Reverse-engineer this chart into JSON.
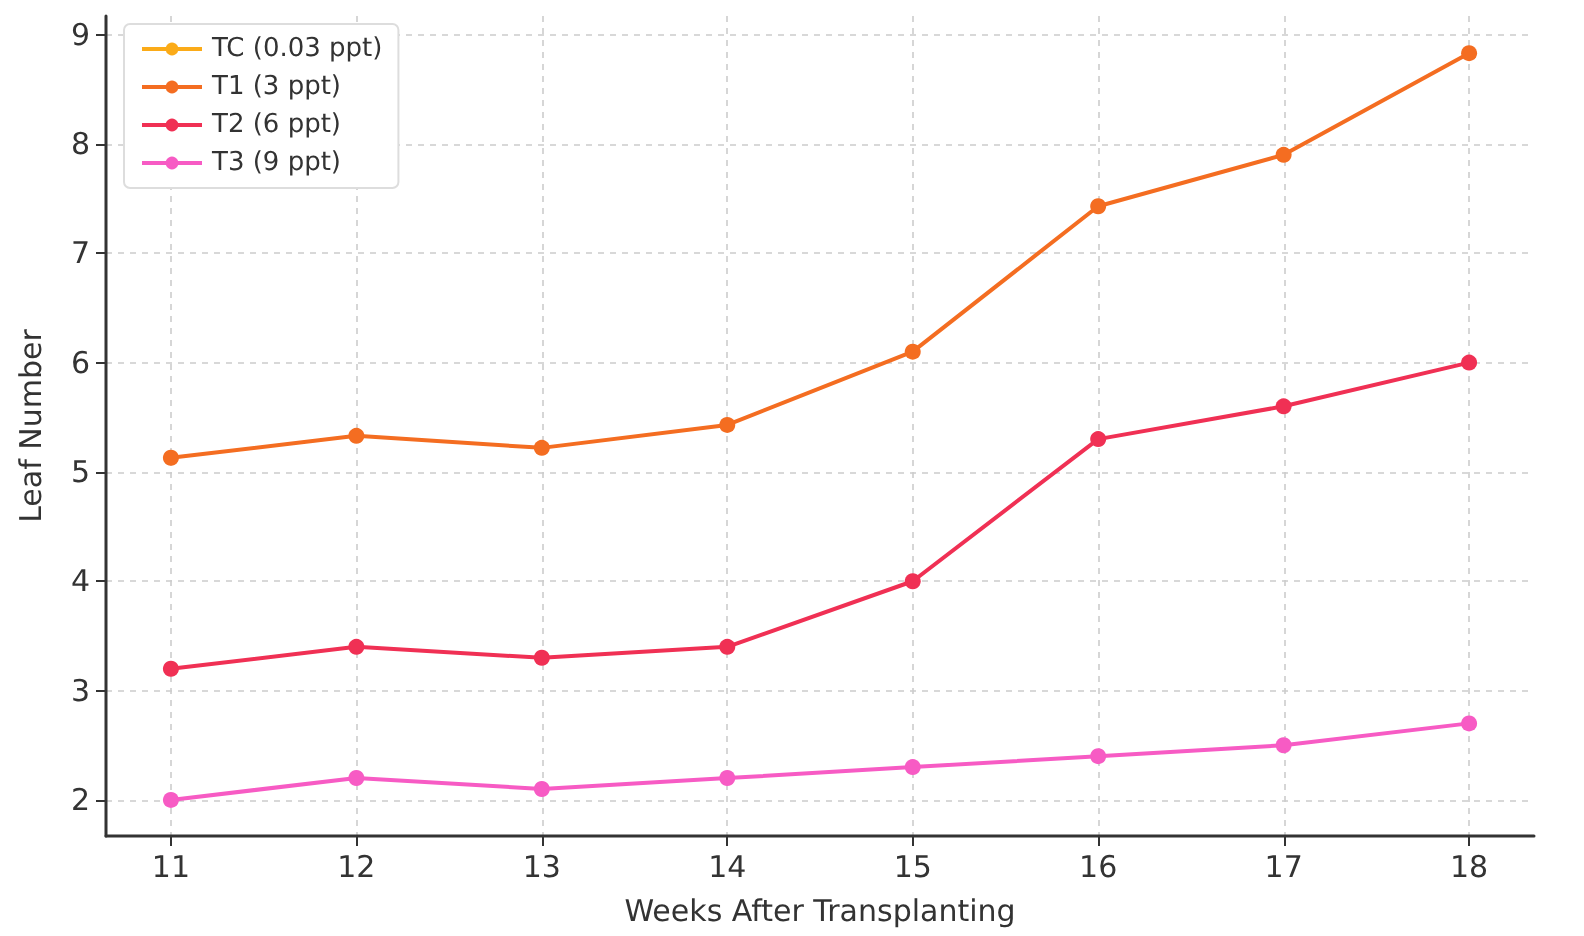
{
  "chart_data": {
    "type": "line",
    "xlabel": "Weeks After Transplanting",
    "ylabel": "Leaf Number",
    "x": [
      11,
      12,
      13,
      14,
      15,
      16,
      17,
      18
    ],
    "xlim": [
      10.65,
      18.35
    ],
    "xticks": [
      11,
      12,
      13,
      14,
      15,
      16,
      17,
      18
    ],
    "ylim": [
      1.67,
      9.17
    ],
    "yticks": [
      2,
      3,
      4,
      5,
      6,
      7,
      8,
      9
    ],
    "grid": true,
    "legend": "top left",
    "marker": "circle",
    "line_style": "solid",
    "series": [
      {
        "name": "TC (0.03 ppt)",
        "color": "#fbab18",
        "values": [
          null,
          null,
          null,
          null,
          null,
          null,
          null,
          null
        ]
      },
      {
        "name": "T1 (3 ppt)",
        "color": "#f46d21",
        "values": [
          5.13,
          5.33,
          5.22,
          5.43,
          6.1,
          7.43,
          7.9,
          8.83
        ]
      },
      {
        "name": "T2 (6 ppt)",
        "color": "#f03054",
        "values": [
          3.2,
          3.4,
          3.3,
          3.4,
          4.0,
          5.3,
          5.6,
          6.0
        ]
      },
      {
        "name": "T3 (9 ppt)",
        "color": "#f75bc4",
        "values": [
          2.0,
          2.2,
          2.1,
          2.2,
          2.3,
          2.4,
          2.5,
          2.7
        ]
      }
    ]
  }
}
